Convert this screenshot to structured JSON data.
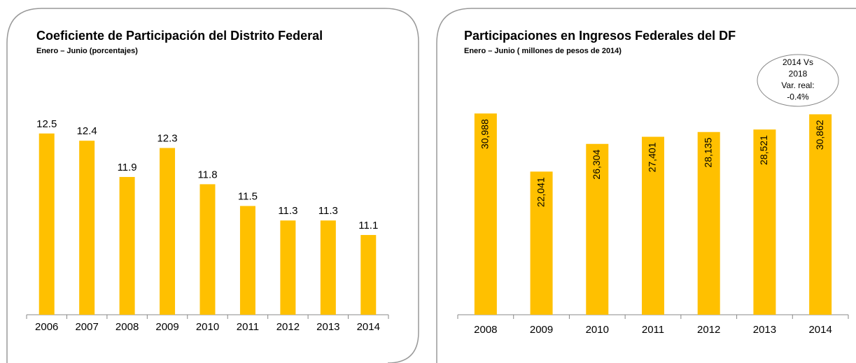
{
  "chart_data": [
    {
      "type": "bar",
      "title": "Coeficiente de Participación del Distrito Federal",
      "subtitle": "Enero – Junio (porcentajes)",
      "categories": [
        "2006",
        "2007",
        "2008",
        "2009",
        "2010",
        "2011",
        "2012",
        "2013",
        "2014"
      ],
      "values": [
        12.5,
        12.4,
        11.9,
        12.3,
        11.8,
        11.5,
        11.3,
        11.3,
        11.1
      ],
      "color": "#FFC000",
      "ylim": [
        10,
        13
      ]
    },
    {
      "type": "bar",
      "title": "Participaciones en Ingresos Federales del DF",
      "subtitle": "Enero – Junio ( millones de pesos de 2014)",
      "categories": [
        "2008",
        "2009",
        "2010",
        "2011",
        "2012",
        "2013",
        "2014"
      ],
      "values": [
        30988,
        22041,
        26304,
        27401,
        28135,
        28521,
        30862
      ],
      "value_labels": [
        "30,988",
        "22,041",
        "26,304",
        "27,401",
        "28,135",
        "28,521",
        "30,862"
      ],
      "color": "#FFC000",
      "ylim": [
        0,
        35000
      ],
      "annotation": [
        "2014 Vs",
        "2018",
        "Var. real:",
        "-0.4%"
      ]
    }
  ]
}
